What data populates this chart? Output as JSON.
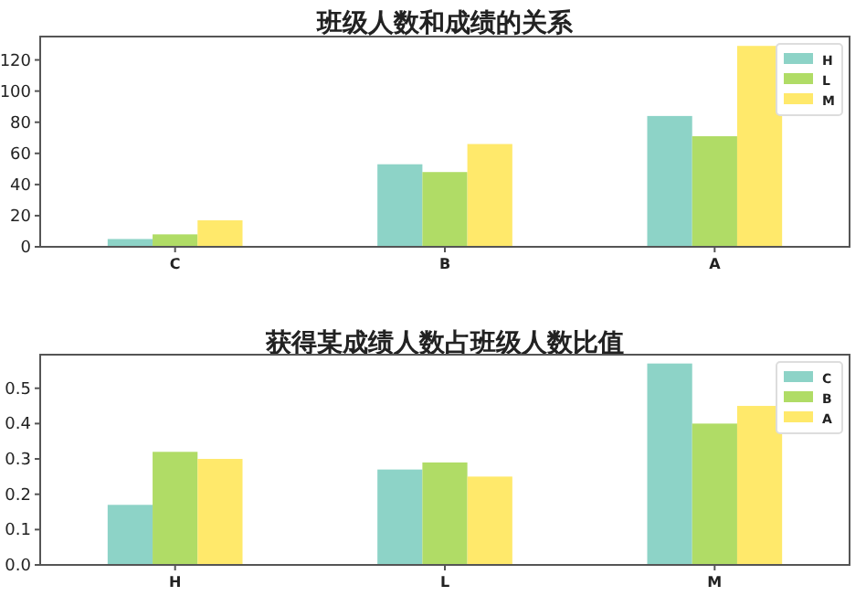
{
  "chart_data": [
    {
      "type": "bar",
      "title": "班级人数和成绩的关系",
      "categories": [
        "C",
        "B",
        "A"
      ],
      "series": [
        {
          "name": "H",
          "color": "#8dd3c7",
          "values": [
            5,
            53,
            84
          ]
        },
        {
          "name": "L",
          "color": "#b0dc66",
          "values": [
            8,
            48,
            71
          ]
        },
        {
          "name": "M",
          "color": "#ffe96b",
          "values": [
            17,
            66,
            129
          ]
        }
      ],
      "ylim": [
        0,
        135
      ],
      "yticks": [
        0,
        20,
        40,
        60,
        80,
        100,
        120
      ],
      "legend": "top right"
    },
    {
      "type": "bar",
      "title": "获得某成绩人数占班级人数比值",
      "categories": [
        "H",
        "L",
        "M"
      ],
      "series": [
        {
          "name": "C",
          "color": "#8dd3c7",
          "values": [
            0.17,
            0.27,
            0.57
          ]
        },
        {
          "name": "B",
          "color": "#b0dc66",
          "values": [
            0.32,
            0.29,
            0.4
          ]
        },
        {
          "name": "A",
          "color": "#ffe96b",
          "values": [
            0.3,
            0.25,
            0.45
          ]
        }
      ],
      "ylim": [
        0,
        0.595
      ],
      "yticks": [
        {
          "value": 0,
          "label": "0.0"
        },
        0.1,
        0.2,
        0.3,
        0.4,
        0.5
      ],
      "legend": "top right"
    }
  ]
}
